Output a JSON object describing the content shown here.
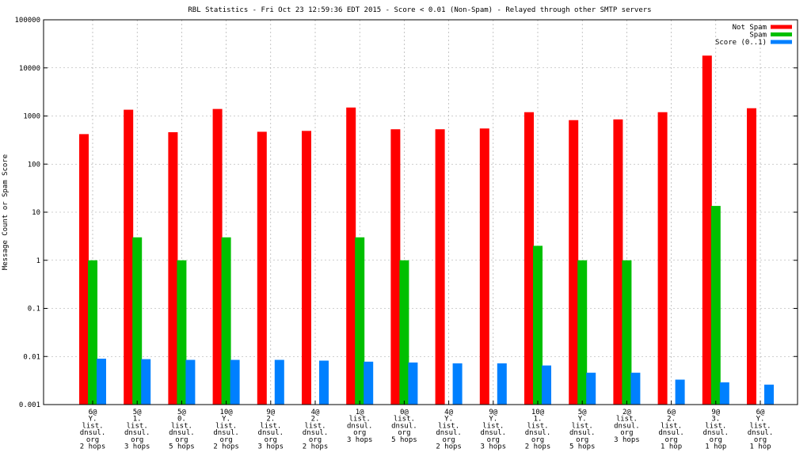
{
  "chart_data": {
    "type": "bar",
    "title": "RBL Statistics - Fri Oct 23 12:59:36 EDT 2015 - Score < 0.01 (Non-Spam) - Relayed through other SMTP servers",
    "ylabel": "Message Count or Spam Score",
    "xlabel": "",
    "yscale": "log",
    "ylim": [
      0.001,
      100000
    ],
    "yticks": [
      "0.001",
      "0.01",
      "0.1",
      "1",
      "10",
      "100",
      "1000",
      "10000",
      "100000"
    ],
    "grid": true,
    "legend_position": "top-right",
    "categories": [
      [
        "6@",
        "Y.",
        "list.",
        "dnsul.",
        "org",
        "2 hops"
      ],
      [
        "5@",
        "1.",
        "list.",
        "dnsul.",
        "org",
        "3 hops"
      ],
      [
        "5@",
        "0.",
        "list.",
        "dnsul.",
        "org",
        "5 hops"
      ],
      [
        "10@",
        "Y.",
        "list.",
        "dnsul.",
        "org",
        "2 hops"
      ],
      [
        "9@",
        "2.",
        "list.",
        "dnsul.",
        "org",
        "3 hops"
      ],
      [
        "4@",
        "2.",
        "list.",
        "dnsul.",
        "org",
        "2 hops"
      ],
      [
        "1@",
        "list.",
        "dnsul.",
        "org",
        "3 hops"
      ],
      [
        "0@",
        "list.",
        "dnsul.",
        "org",
        "5 hops"
      ],
      [
        "4@",
        "Y.",
        "list.",
        "dnsul.",
        "org",
        "2 hops"
      ],
      [
        "9@",
        "Y.",
        "list.",
        "dnsul.",
        "org",
        "3 hops"
      ],
      [
        "10@",
        "1.",
        "list.",
        "dnsul.",
        "org",
        "2 hops"
      ],
      [
        "5@",
        "Y.",
        "list.",
        "dnsul.",
        "org",
        "5 hops"
      ],
      [
        "2@",
        "list.",
        "dnsul.",
        "org",
        "3 hops"
      ],
      [
        "6@",
        "2.",
        "list.",
        "dnsul.",
        "org",
        "1 hop"
      ],
      [
        "9@",
        "3.",
        "list.",
        "dnsul.",
        "org",
        "1 hop"
      ],
      [
        "6@",
        "Y.",
        "list.",
        "dnsul.",
        "org",
        "1 hop"
      ]
    ],
    "series": [
      {
        "name": "Not Spam",
        "color": "#ff0000",
        "values": [
          420,
          1350,
          460,
          1400,
          470,
          490,
          1500,
          530,
          530,
          550,
          1200,
          820,
          850,
          1200,
          18000,
          1450
        ]
      },
      {
        "name": "Spam",
        "color": "#00c000",
        "values": [
          1,
          3,
          1,
          3,
          null,
          null,
          3,
          1,
          null,
          null,
          2,
          1,
          1,
          null,
          13.5,
          null
        ]
      },
      {
        "name": "Score (0..1)",
        "color": "#0080ff",
        "values": [
          0.009,
          0.0088,
          0.0085,
          0.0085,
          0.0085,
          0.0082,
          0.0078,
          0.0075,
          0.0072,
          0.0072,
          0.0065,
          0.0046,
          0.0046,
          0.0033,
          0.0029,
          0.0026
        ]
      }
    ]
  }
}
